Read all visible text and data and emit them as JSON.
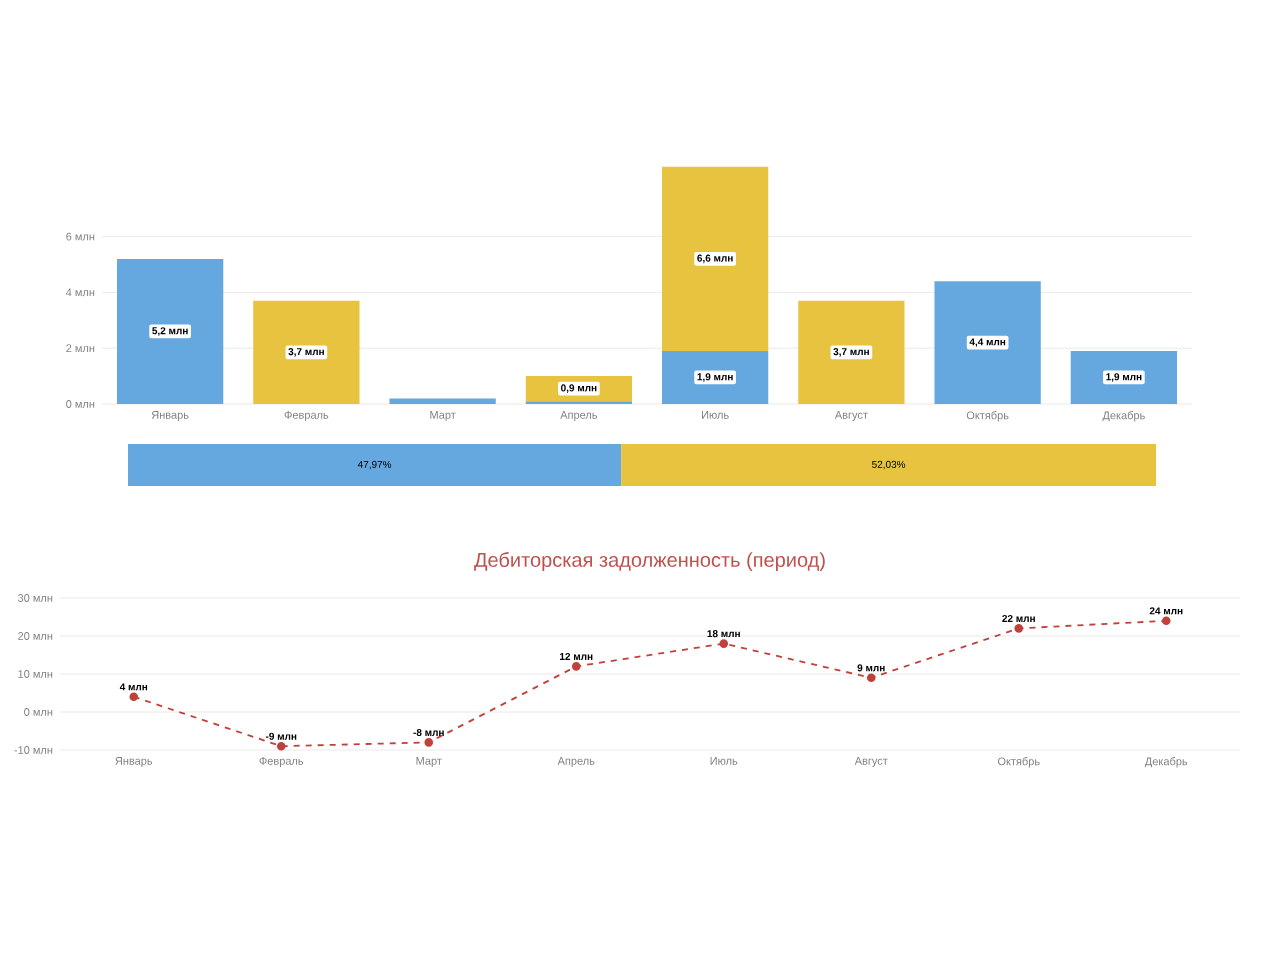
{
  "chart_data": [
    {
      "type": "bar",
      "stacked": true,
      "categories": [
        "Январь",
        "Февраль",
        "Март",
        "Апрель",
        "Июль",
        "Август",
        "Октябрь",
        "Декабрь"
      ],
      "series": [
        {
          "color": "#64a8df",
          "values": [
            5.2,
            null,
            0.2,
            0.1,
            1.9,
            null,
            4.4,
            1.9
          ],
          "value_labels": [
            "5,2 млн",
            null,
            null,
            null,
            "1,9 млн",
            null,
            "4,4 млн",
            "1,9 млн"
          ]
        },
        {
          "color": "#e8c33f",
          "values": [
            null,
            3.7,
            null,
            0.9,
            6.6,
            3.7,
            null,
            null
          ],
          "value_labels": [
            null,
            "3,7 млн",
            null,
            "0,9 млн",
            "6,6 млн",
            "3,7 млн",
            null,
            null
          ]
        }
      ],
      "ylim": [
        0,
        8.6
      ],
      "yticks": [
        {
          "value": 0,
          "label": "0 млн"
        },
        {
          "value": 2,
          "label": "2 млн"
        },
        {
          "value": 4,
          "label": "4 млн"
        },
        {
          "value": 6,
          "label": "6 млн"
        }
      ],
      "grid": "y"
    },
    {
      "type": "bar",
      "orientation": "horizontal",
      "stacked": true,
      "categories": [
        null
      ],
      "series": [
        {
          "color": "#64a8df",
          "values": [
            47.97
          ],
          "value_labels": [
            "47,97%"
          ]
        },
        {
          "color": "#e8c33f",
          "values": [
            52.03
          ],
          "value_labels": [
            "52,03%"
          ]
        }
      ],
      "xlim": [
        0,
        100
      ],
      "tick_labels": false
    },
    {
      "type": "line",
      "title": "Дебиторская задолженность (период)",
      "categories": [
        "Январь",
        "Февраль",
        "Март",
        "Апрель",
        "Июль",
        "Август",
        "Октябрь",
        "Декабрь"
      ],
      "series": [
        {
          "color": "#c0413b",
          "values": [
            4,
            -9,
            -8,
            12,
            18,
            9,
            22,
            24
          ],
          "value_labels": [
            "4 млн",
            "-9 млн",
            "-8 млн",
            "12 млн",
            "18 млн",
            "9 млн",
            "22 млн",
            "24 млн"
          ]
        }
      ],
      "ylim": [
        -10,
        30
      ],
      "yticks": [
        {
          "value": -10,
          "label": "-10 млн"
        },
        {
          "value": 0,
          "label": "0 млн"
        },
        {
          "value": 10,
          "label": "10 млн"
        },
        {
          "value": 20,
          "label": "20 млн"
        },
        {
          "value": 30,
          "label": "30 млн"
        }
      ],
      "grid": "y",
      "marker": "circle",
      "line_style": "dashed"
    }
  ]
}
